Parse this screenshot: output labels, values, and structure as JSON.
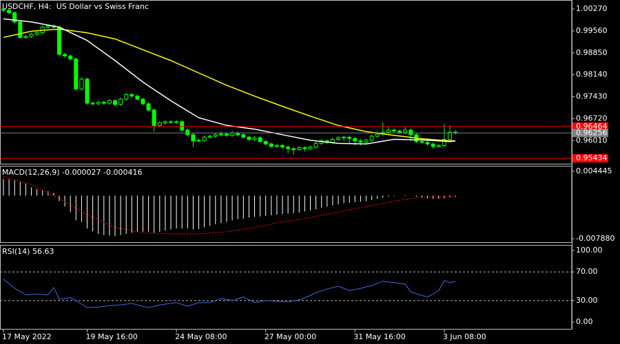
{
  "chart_data": [
    {
      "type": "candlestick",
      "title": "USDCHF, H4:  US Dollar vs Swiss Franc",
      "candles": [
        [
          1.0027,
          1.0032,
          1.0018,
          1.0023
        ],
        [
          1.0023,
          1.0028,
          1.001,
          1.0015
        ],
        [
          1.0015,
          1.002,
          0.998,
          0.9985
        ],
        [
          0.9985,
          0.999,
          0.993,
          0.9935
        ],
        [
          0.9935,
          0.9943,
          0.993,
          0.9938
        ],
        [
          0.9938,
          0.995,
          0.9933,
          0.9945
        ],
        [
          0.9945,
          0.9955,
          0.994,
          0.995
        ],
        [
          0.995,
          0.9973,
          0.9945,
          0.9968
        ],
        [
          0.9968,
          0.9977,
          0.9963,
          0.9972
        ],
        [
          0.9972,
          0.9977,
          0.9963,
          0.9968
        ],
        [
          0.9968,
          0.9973,
          0.9875,
          0.988
        ],
        [
          0.988,
          0.9885,
          0.987,
          0.9875
        ],
        [
          0.9875,
          0.988,
          0.986,
          0.9865
        ],
        [
          0.9865,
          0.987,
          0.9763,
          0.9768
        ],
        [
          0.9768,
          0.9805,
          0.9763,
          0.98
        ],
        [
          0.98,
          0.9805,
          0.9717,
          0.9722
        ],
        [
          0.9722,
          0.9727,
          0.9715,
          0.972
        ],
        [
          0.972,
          0.973,
          0.9715,
          0.9725
        ],
        [
          0.9725,
          0.973,
          0.9717,
          0.9722
        ],
        [
          0.9722,
          0.9735,
          0.9717,
          0.973
        ],
        [
          0.973,
          0.9735,
          0.9713,
          0.9718
        ],
        [
          0.9718,
          0.974,
          0.9713,
          0.9735
        ],
        [
          0.9735,
          0.9755,
          0.973,
          0.975
        ],
        [
          0.975,
          0.9755,
          0.974,
          0.9745
        ],
        [
          0.9745,
          0.975,
          0.973,
          0.9735
        ],
        [
          0.9735,
          0.974,
          0.9715,
          0.972
        ],
        [
          0.972,
          0.9725,
          0.9695,
          0.97
        ],
        [
          0.97,
          0.9705,
          0.963,
          0.965
        ],
        [
          0.965,
          0.9663,
          0.9645,
          0.9658
        ],
        [
          0.9658,
          0.9667,
          0.9653,
          0.9662
        ],
        [
          0.9662,
          0.9667,
          0.9655,
          0.966
        ],
        [
          0.966,
          0.9667,
          0.9655,
          0.9662
        ],
        [
          0.9662,
          0.9667,
          0.963,
          0.9635
        ],
        [
          0.9635,
          0.964,
          0.9615,
          0.962
        ],
        [
          0.962,
          0.9625,
          0.958,
          0.96
        ],
        [
          0.96,
          0.9607,
          0.9595,
          0.9602
        ],
        [
          0.9602,
          0.9617,
          0.9597,
          0.9612
        ],
        [
          0.9612,
          0.962,
          0.9607,
          0.9615
        ],
        [
          0.9615,
          0.9625,
          0.961,
          0.962
        ],
        [
          0.962,
          0.963,
          0.9615,
          0.9622
        ],
        [
          0.9622,
          0.9627,
          0.9613,
          0.9618
        ],
        [
          0.9618,
          0.9632,
          0.9613,
          0.9625
        ],
        [
          0.9625,
          0.963,
          0.9615,
          0.962
        ],
        [
          0.962,
          0.9625,
          0.9607,
          0.9612
        ],
        [
          0.9612,
          0.9617,
          0.96,
          0.9605
        ],
        [
          0.9605,
          0.9615,
          0.96,
          0.961
        ],
        [
          0.961,
          0.9615,
          0.9593,
          0.9598
        ],
        [
          0.9598,
          0.9603,
          0.9585,
          0.959
        ],
        [
          0.959,
          0.9595,
          0.9577,
          0.9582
        ],
        [
          0.9582,
          0.959,
          0.9577,
          0.9585
        ],
        [
          0.9585,
          0.959,
          0.9575,
          0.958
        ],
        [
          0.958,
          0.9585,
          0.956,
          0.9575
        ],
        [
          0.9575,
          0.958,
          0.9555,
          0.9572
        ],
        [
          0.9572,
          0.9583,
          0.9567,
          0.9578
        ],
        [
          0.9578,
          0.9583,
          0.9565,
          0.9575
        ],
        [
          0.9575,
          0.9585,
          0.957,
          0.958
        ],
        [
          0.958,
          0.9597,
          0.9575,
          0.9592
        ],
        [
          0.9592,
          0.9605,
          0.9587,
          0.96
        ],
        [
          0.96,
          0.9605,
          0.959,
          0.9595
        ],
        [
          0.9595,
          0.961,
          0.959,
          0.9605
        ],
        [
          0.9605,
          0.9615,
          0.96,
          0.961
        ],
        [
          0.961,
          0.9617,
          0.96,
          0.9612
        ],
        [
          0.9612,
          0.9617,
          0.959,
          0.9608
        ],
        [
          0.9608,
          0.9613,
          0.9585,
          0.96
        ],
        [
          0.96,
          0.9605,
          0.9585,
          0.9596
        ],
        [
          0.9596,
          0.9607,
          0.959,
          0.9602
        ],
        [
          0.9602,
          0.962,
          0.9597,
          0.9615
        ],
        [
          0.9615,
          0.963,
          0.961,
          0.9622
        ],
        [
          0.9622,
          0.966,
          0.9617,
          0.9628
        ],
        [
          0.9628,
          0.9645,
          0.9623,
          0.9635
        ],
        [
          0.9635,
          0.964,
          0.9627,
          0.9632
        ],
        [
          0.9632,
          0.9637,
          0.9623,
          0.9628
        ],
        [
          0.9628,
          0.9645,
          0.9623,
          0.9635
        ],
        [
          0.9635,
          0.964,
          0.96,
          0.962
        ],
        [
          0.962,
          0.9625,
          0.9593,
          0.9598
        ],
        [
          0.9598,
          0.9603,
          0.959,
          0.9595
        ],
        [
          0.9595,
          0.96,
          0.9585,
          0.959
        ],
        [
          0.959,
          0.9595,
          0.9575,
          0.9582
        ],
        [
          0.9582,
          0.959,
          0.9577,
          0.9585
        ],
        [
          0.9585,
          0.9655,
          0.958,
          0.9605
        ],
        [
          0.9605,
          0.965,
          0.96,
          0.9628
        ],
        [
          0.9628,
          0.9635,
          0.962,
          0.9626
        ]
      ],
      "candle_color": "#00ff00",
      "series": [
        {
          "color": "#ffff00",
          "x": [
            0,
            5,
            10,
            15,
            20,
            25,
            30,
            35,
            40,
            45,
            50,
            55,
            60,
            65,
            70,
            75,
            80,
            81
          ],
          "values": [
            0.9935,
            0.9955,
            0.9962,
            0.995,
            0.993,
            0.9895,
            0.986,
            0.982,
            0.978,
            0.9745,
            0.9712,
            0.968,
            0.965,
            0.963,
            0.9618,
            0.9607,
            0.96,
            0.96
          ]
        },
        {
          "color": "#ffffff",
          "x": [
            0,
            5,
            10,
            15,
            20,
            25,
            30,
            35,
            40,
            45,
            50,
            55,
            60,
            65,
            70,
            75,
            80,
            81
          ],
          "values": [
            0.9995,
            0.9985,
            0.9968,
            0.9925,
            0.986,
            0.979,
            0.973,
            0.9675,
            0.965,
            0.9638,
            0.962,
            0.9602,
            0.9592,
            0.959,
            0.9605,
            0.9603,
            0.9598,
            0.96
          ]
        }
      ],
      "ylim": [
        0.9526,
        1.0056
      ],
      "yticks": [
        {
          "value": 1.0027,
          "label": "1.00270"
        },
        {
          "value": 0.9956,
          "label": "0.99560"
        },
        {
          "value": 0.9885,
          "label": "0.98850"
        },
        {
          "value": 0.9814,
          "label": "0.98140"
        },
        {
          "value": 0.9743,
          "label": "0.97430"
        },
        {
          "value": 0.9672,
          "label": "0.96720"
        },
        {
          "value": 0.9601,
          "label": "0.96010"
        }
      ],
      "hlines": [
        {
          "value": 0.96464,
          "color": "#ff0000"
        },
        {
          "value": 0.96256,
          "color": "#808080"
        },
        {
          "value": 0.95434,
          "color": "#ff0000"
        }
      ]
    },
    {
      "type": "macd",
      "title": "MACD(12,26,9) -0.000027 -0.000416",
      "values": [
        0.003,
        0.003,
        0.0028,
        0.0025,
        0.0022,
        0.0015,
        0.0012,
        0.001,
        0.0008,
        0.0005,
        -0.001,
        -0.002,
        -0.003,
        -0.0045,
        -0.0048,
        -0.006,
        -0.0065,
        -0.007,
        -0.0072,
        -0.0073,
        -0.0074,
        -0.0072,
        -0.007,
        -0.0068,
        -0.0066,
        -0.0066,
        -0.0066,
        -0.0068,
        -0.0066,
        -0.0064,
        -0.0062,
        -0.006,
        -0.006,
        -0.006,
        -0.0062,
        -0.0061,
        -0.0058,
        -0.0055,
        -0.0052,
        -0.005,
        -0.0048,
        -0.0045,
        -0.0043,
        -0.0042,
        -0.004,
        -0.0039,
        -0.0038,
        -0.0037,
        -0.0036,
        -0.0035,
        -0.0034,
        -0.0033,
        -0.0032,
        -0.0031,
        -0.0029,
        -0.0027,
        -0.0025,
        -0.0022,
        -0.002,
        -0.0018,
        -0.0016,
        -0.0014,
        -0.0013,
        -0.0012,
        -0.0011,
        -0.001,
        -0.0008,
        -0.0006,
        -0.0004,
        -0.0002,
        -0.0001,
        0.0,
        0.0001,
        0.0,
        -0.0002,
        -0.0004,
        -0.0005,
        -0.0006,
        -0.0006,
        -0.0005,
        -0.0003,
        -0.0002
      ],
      "color": "#ffffff",
      "signal": {
        "color": "#ff0000",
        "x": [
          0,
          5,
          10,
          15,
          20,
          25,
          30,
          35,
          40,
          45,
          50,
          55,
          60,
          65,
          70,
          75,
          80,
          81
        ],
        "values": [
          0.0035,
          0.002,
          -0.0005,
          -0.0035,
          -0.0058,
          -0.0068,
          -0.007,
          -0.007,
          -0.0066,
          -0.0058,
          -0.0048,
          -0.004,
          -0.003,
          -0.002,
          -0.001,
          -0.0003,
          -0.0002,
          -0.0002
        ]
      },
      "ylim": [
        -0.0085,
        0.00544
      ],
      "yticks": [
        0.004445,
        {
          "value": -0.00788,
          "label": "-0.007880"
        }
      ]
    },
    {
      "type": "line",
      "title": "RSI(14) 56.63",
      "series": [
        {
          "color": "#4169e1",
          "x": [
            0,
            2,
            4,
            6,
            8,
            9,
            10,
            12,
            14,
            15,
            17,
            19,
            21,
            23,
            26,
            28,
            31,
            33,
            35,
            37,
            39,
            41,
            43,
            45,
            47,
            49,
            51,
            53,
            55,
            56,
            58,
            60,
            62,
            64,
            66,
            68,
            70,
            72,
            73,
            75,
            76,
            77,
            78,
            79,
            80,
            81
          ],
          "values": [
            60,
            47,
            38,
            39,
            38,
            48,
            32,
            34,
            25,
            20,
            21,
            23,
            24,
            26,
            20,
            24,
            27,
            22,
            27,
            27,
            33,
            30,
            35,
            27,
            30,
            29,
            28,
            31,
            37,
            41,
            46,
            50,
            44,
            47,
            51,
            57,
            55,
            53,
            42,
            37,
            35,
            39,
            44,
            58,
            55,
            56.63
          ]
        }
      ],
      "ylim": [
        -9.6,
        107.7
      ],
      "yticks": [
        {
          "value": 100,
          "label": "100.00"
        },
        {
          "value": 70,
          "label": "70.00"
        },
        {
          "value": 30,
          "label": "30.00"
        },
        {
          "value": 0,
          "label": "0.00"
        }
      ],
      "levels": [
        70,
        30
      ]
    }
  ],
  "time_axis": {
    "ticks": [
      {
        "value": 0,
        "label": "17 May 2022"
      },
      {
        "value": 15,
        "label": "19 May 16:00"
      },
      {
        "value": 31,
        "label": "24 May 08:00"
      },
      {
        "value": 47,
        "label": "27 May 00:00"
      },
      {
        "value": 63,
        "label": "31 May 16:00"
      },
      {
        "value": 79,
        "label": "3 Jun 08:00"
      }
    ]
  }
}
